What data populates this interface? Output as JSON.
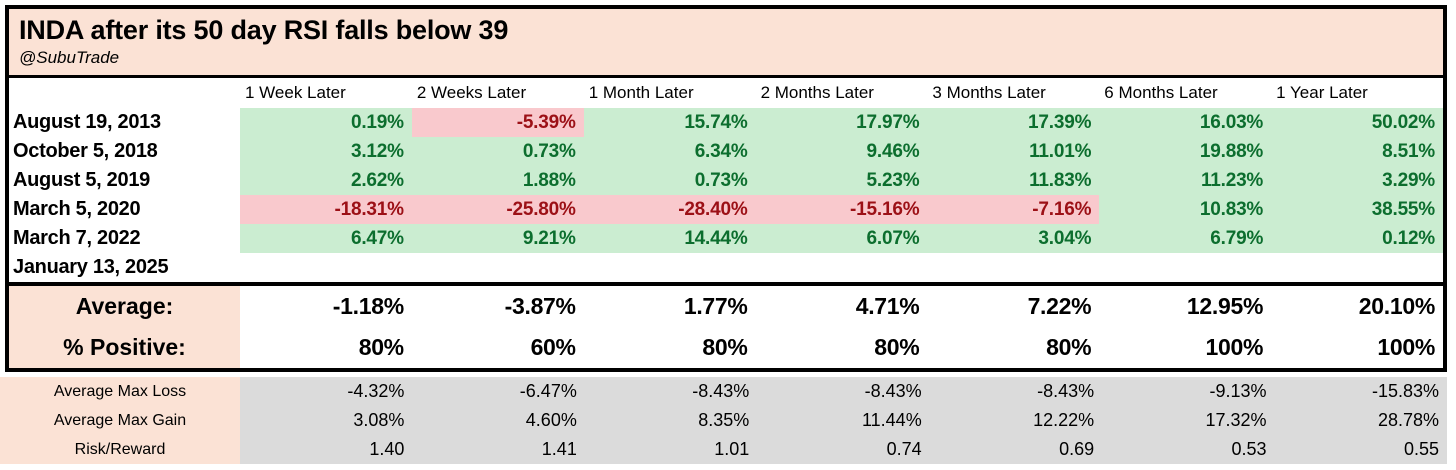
{
  "colors": {
    "header_bg": "#FBE2D5",
    "label_bg": "#FBE2D5",
    "positive_bg": "#CBEDD1",
    "positive_text": "#0C6E2E",
    "negative_bg": "#F9C9CD",
    "negative_text": "#9C1016",
    "stats_bg": "#DBDBDB",
    "border": "#000000"
  },
  "chart_data": {
    "type": "table",
    "title": "INDA after its 50 day RSI falls below 39",
    "subtitle": "@SubuTrade",
    "columns": [
      "1 Week Later",
      "2 Weeks Later",
      "1 Month Later",
      "2 Months Later",
      "3 Months Later",
      "6 Months Later",
      "1 Year Later"
    ],
    "rows": [
      {
        "label": "August 19, 2013",
        "values": [
          "0.19%",
          "-5.39%",
          "15.74%",
          "17.97%",
          "17.39%",
          "16.03%",
          "50.02%"
        ]
      },
      {
        "label": "October 5, 2018",
        "values": [
          "3.12%",
          "0.73%",
          "6.34%",
          "9.46%",
          "11.01%",
          "19.88%",
          "8.51%"
        ]
      },
      {
        "label": "August 5, 2019",
        "values": [
          "2.62%",
          "1.88%",
          "0.73%",
          "5.23%",
          "11.83%",
          "11.23%",
          "3.29%"
        ]
      },
      {
        "label": "March 5, 2020",
        "values": [
          "-18.31%",
          "-25.80%",
          "-28.40%",
          "-15.16%",
          "-7.16%",
          "10.83%",
          "38.55%"
        ]
      },
      {
        "label": "March 7, 2022",
        "values": [
          "6.47%",
          "9.21%",
          "14.44%",
          "6.07%",
          "3.04%",
          "6.79%",
          "0.12%"
        ]
      },
      {
        "label": "January 13, 2025",
        "values": [
          "",
          "",
          "",
          "",
          "",
          "",
          ""
        ]
      }
    ],
    "summary": [
      {
        "label": "Average:",
        "values": [
          "-1.18%",
          "-3.87%",
          "1.77%",
          "4.71%",
          "7.22%",
          "12.95%",
          "20.10%"
        ]
      },
      {
        "label": "% Positive:",
        "values": [
          "80%",
          "60%",
          "80%",
          "80%",
          "80%",
          "100%",
          "100%"
        ]
      }
    ],
    "stats": [
      {
        "label": "Average Max Loss",
        "values": [
          "-4.32%",
          "-6.47%",
          "-8.43%",
          "-8.43%",
          "-8.43%",
          "-9.13%",
          "-15.83%"
        ]
      },
      {
        "label": "Average Max Gain",
        "values": [
          "3.08%",
          "4.60%",
          "8.35%",
          "11.44%",
          "12.22%",
          "17.32%",
          "28.78%"
        ]
      },
      {
        "label": "Risk/Reward",
        "values": [
          "1.40",
          "1.41",
          "1.01",
          "0.74",
          "0.69",
          "0.53",
          "0.55"
        ]
      }
    ]
  }
}
